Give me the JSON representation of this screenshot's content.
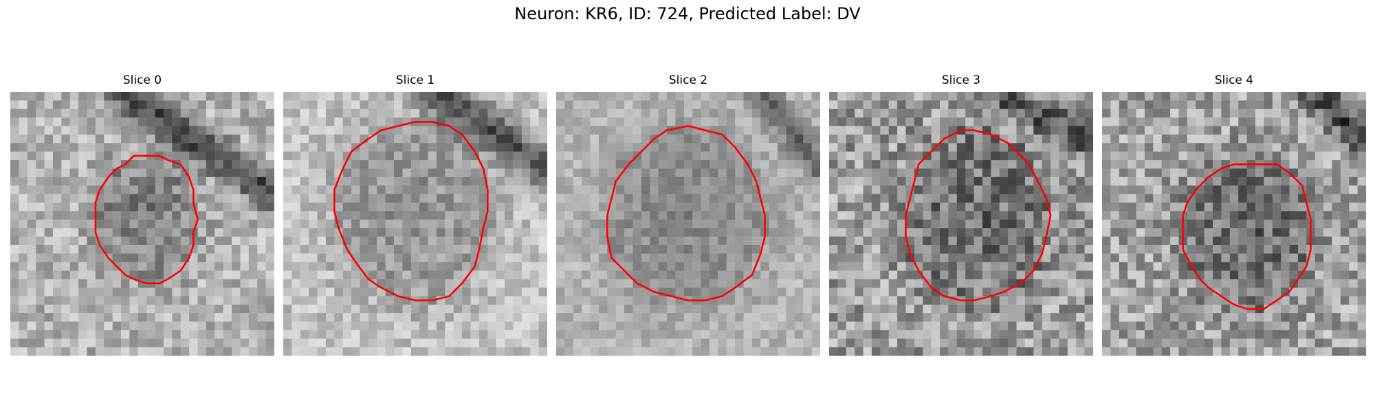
{
  "figure": {
    "title": "Neuron: KR6, ID: 724, Predicted Label: DV"
  },
  "colors": {
    "contour": "#ff0000",
    "background": "#ffffff"
  },
  "panels": [
    {
      "title": "Slice 0"
    },
    {
      "title": "Slice 1"
    },
    {
      "title": "Slice 2"
    },
    {
      "title": "Slice 3"
    },
    {
      "title": "Slice 4"
    }
  ]
}
